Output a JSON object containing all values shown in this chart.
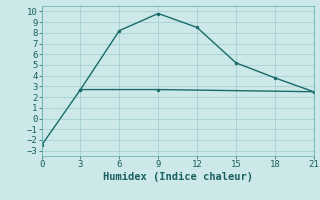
{
  "xlabel": "Humidex (Indice chaleur)",
  "line1_x": [
    0,
    3,
    6,
    9,
    12,
    15,
    18,
    21
  ],
  "line1_y": [
    -2.5,
    2.7,
    8.2,
    9.8,
    8.5,
    5.2,
    3.8,
    2.5
  ],
  "line2_x": [
    3,
    9,
    21
  ],
  "line2_y": [
    2.7,
    2.7,
    2.5
  ],
  "line_color": "#1a6b6b",
  "bg_color": "#cce8e8",
  "grid_color": "#aad4d4",
  "xlim": [
    0,
    21
  ],
  "ylim": [
    -3.5,
    10.5
  ],
  "xticks": [
    0,
    3,
    6,
    9,
    12,
    15,
    18,
    21
  ],
  "yticks": [
    -3,
    -2,
    -1,
    0,
    1,
    2,
    3,
    4,
    5,
    6,
    7,
    8,
    9,
    10
  ],
  "tick_fontsize": 6.5,
  "xlabel_fontsize": 7.5
}
